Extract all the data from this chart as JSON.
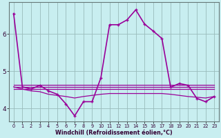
{
  "xlabel": "Windchill (Refroidissement éolien,°C)",
  "ylabel": "",
  "bg_color": "#c8eef0",
  "line_color": "#990099",
  "grid_color": "#99bbbb",
  "xmin": -0.5,
  "xmax": 23.5,
  "ymin": 3.65,
  "ymax": 6.85,
  "yticks": [
    4,
    5,
    6
  ],
  "xticks": [
    0,
    1,
    2,
    3,
    4,
    5,
    6,
    7,
    8,
    9,
    10,
    11,
    12,
    13,
    14,
    15,
    16,
    17,
    18,
    19,
    20,
    21,
    22,
    23
  ],
  "main_x": [
    0,
    1,
    2,
    3,
    4,
    5,
    6,
    7,
    8,
    9,
    10,
    11,
    12,
    13,
    14,
    15,
    16,
    17,
    18,
    19,
    20,
    21,
    22,
    23
  ],
  "main_y": [
    6.55,
    4.58,
    4.52,
    4.62,
    4.47,
    4.38,
    4.12,
    3.8,
    4.18,
    4.18,
    4.82,
    6.25,
    6.25,
    6.38,
    6.65,
    6.27,
    6.08,
    5.88,
    4.57,
    4.67,
    4.62,
    4.27,
    4.18,
    4.32
  ],
  "flat1_x": [
    0,
    1,
    2,
    3,
    4,
    5,
    6,
    7,
    8,
    9,
    10,
    11,
    12,
    13,
    14,
    15,
    16,
    17,
    18,
    19,
    20,
    21,
    22,
    23
  ],
  "flat1_y": [
    4.58,
    4.58,
    4.58,
    4.58,
    4.58,
    4.58,
    4.58,
    4.58,
    4.58,
    4.58,
    4.58,
    4.58,
    4.58,
    4.58,
    4.58,
    4.58,
    4.58,
    4.58,
    4.58,
    4.58,
    4.58,
    4.58,
    4.58,
    4.58
  ],
  "flat2_x": [
    0,
    1,
    2,
    3,
    4,
    5,
    6,
    7,
    8,
    9,
    10,
    11,
    12,
    13,
    14,
    15,
    16,
    17,
    18,
    19,
    20,
    21,
    22,
    23
  ],
  "flat2_y": [
    4.63,
    4.63,
    4.63,
    4.63,
    4.63,
    4.63,
    4.63,
    4.63,
    4.63,
    4.63,
    4.63,
    4.63,
    4.63,
    4.63,
    4.63,
    4.63,
    4.63,
    4.63,
    4.63,
    4.63,
    4.63,
    4.63,
    4.63,
    4.63
  ],
  "flat3_x": [
    0,
    1,
    2,
    3,
    4,
    5,
    6,
    7,
    8,
    9,
    10,
    11,
    12,
    13,
    14,
    15,
    16,
    17,
    18,
    19,
    20,
    21,
    22,
    23
  ],
  "flat3_y": [
    4.52,
    4.52,
    4.52,
    4.52,
    4.52,
    4.52,
    4.52,
    4.52,
    4.52,
    4.52,
    4.52,
    4.52,
    4.52,
    4.52,
    4.52,
    4.52,
    4.52,
    4.52,
    4.52,
    4.52,
    4.52,
    4.52,
    4.52,
    4.52
  ],
  "curve2_x": [
    0,
    1,
    2,
    3,
    4,
    5,
    6,
    7,
    8,
    9,
    10,
    11,
    12,
    13,
    14,
    15,
    16,
    17,
    18,
    19,
    20,
    21,
    22,
    23
  ],
  "curve2_y": [
    4.58,
    4.52,
    4.47,
    4.45,
    4.38,
    4.35,
    4.32,
    4.28,
    4.32,
    4.35,
    4.38,
    4.4,
    4.4,
    4.4,
    4.4,
    4.4,
    4.4,
    4.4,
    4.38,
    4.35,
    4.32,
    4.3,
    4.28,
    4.32
  ]
}
